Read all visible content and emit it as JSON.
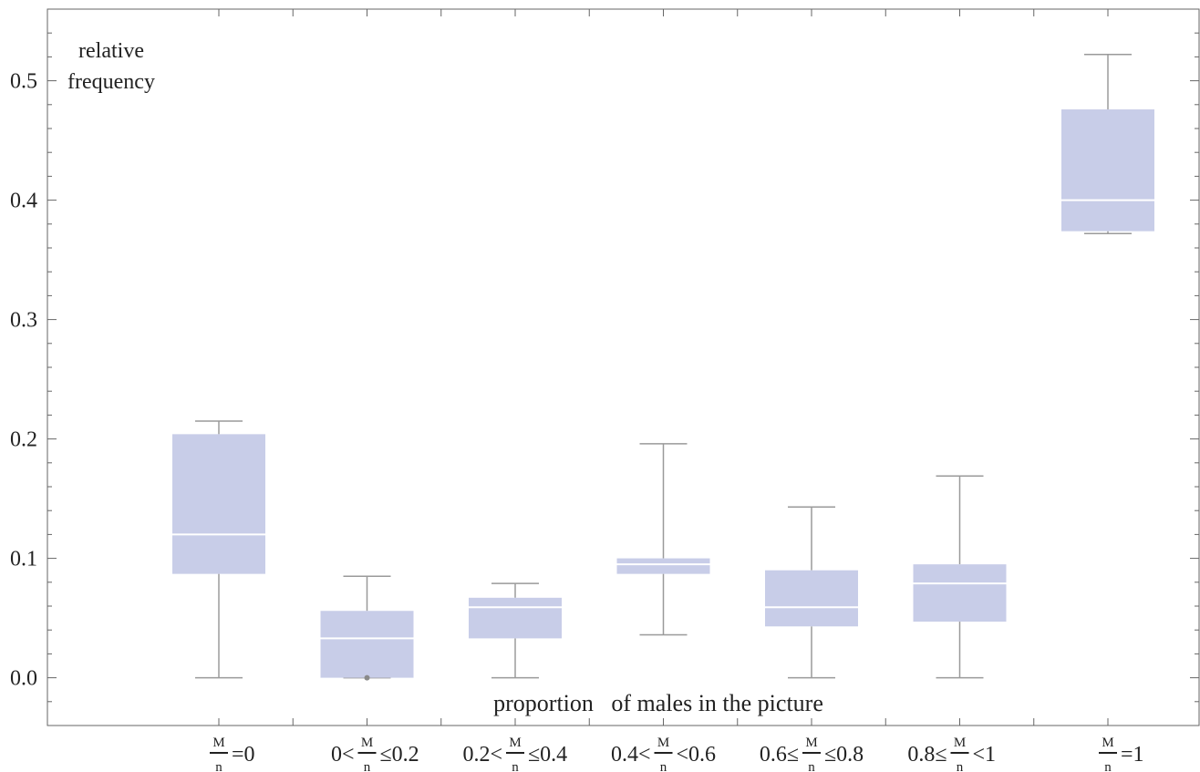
{
  "chart_data": {
    "type": "box",
    "xlabel": "proportion   of males in the picture",
    "ylabel": [
      "relative",
      "frequency"
    ],
    "ylim": [
      -0.04,
      0.56
    ],
    "yticks": [
      0.0,
      0.1,
      0.2,
      0.3,
      0.4,
      0.5
    ],
    "ytick_labels": [
      "0.0",
      "0.1",
      "0.2",
      "0.3",
      "0.4",
      "0.5"
    ],
    "grid": false,
    "color": "#c8cde8",
    "categories": [
      {
        "pre": "",
        "num": "M",
        "den": "n",
        "post": "=0"
      },
      {
        "pre": "0<",
        "num": "M",
        "den": "n",
        "post": "≤0.2"
      },
      {
        "pre": "0.2<",
        "num": "M",
        "den": "n",
        "post": "≤0.4"
      },
      {
        "pre": "0.4<",
        "num": "M",
        "den": "n",
        "post": "<0.6"
      },
      {
        "pre": "0.6≤",
        "num": "M",
        "den": "n",
        "post": "≤0.8"
      },
      {
        "pre": "0.8≤",
        "num": "M",
        "den": "n",
        "post": "<1"
      },
      {
        "pre": "",
        "num": "M",
        "den": "n",
        "post": "=1"
      }
    ],
    "boxes": [
      {
        "min": 0.0,
        "q1": 0.087,
        "median": 0.12,
        "q3": 0.204,
        "max": 0.215,
        "outliers": []
      },
      {
        "min": 0.0,
        "q1": 0.0,
        "median": 0.033,
        "q3": 0.056,
        "max": 0.085,
        "outliers": [
          0.0
        ]
      },
      {
        "min": 0.0,
        "q1": 0.033,
        "median": 0.059,
        "q3": 0.067,
        "max": 0.079,
        "outliers": []
      },
      {
        "min": 0.036,
        "q1": 0.087,
        "median": 0.095,
        "q3": 0.1,
        "max": 0.196,
        "outliers": []
      },
      {
        "min": 0.0,
        "q1": 0.043,
        "median": 0.059,
        "q3": 0.09,
        "max": 0.143,
        "outliers": []
      },
      {
        "min": 0.0,
        "q1": 0.047,
        "median": 0.079,
        "q3": 0.095,
        "max": 0.169,
        "outliers": []
      },
      {
        "min": 0.372,
        "q1": 0.374,
        "median": 0.4,
        "q3": 0.476,
        "max": 0.522,
        "outliers": []
      }
    ]
  }
}
